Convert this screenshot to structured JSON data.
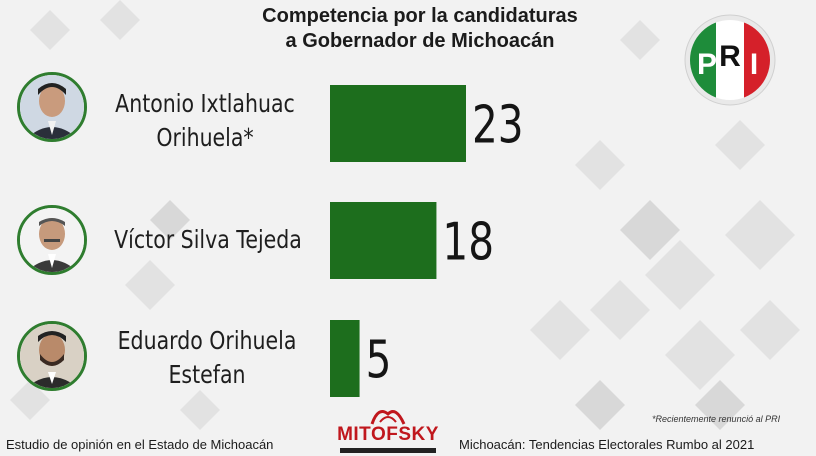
{
  "title_line1": "Competencia por la candidaturas",
  "title_line2": "a Gobernador de Michoacán",
  "party_logo": {
    "icon": "pri-logo",
    "letters": "PRI",
    "colors": [
      "#1e8c3a",
      "#ffffff",
      "#d5202a"
    ]
  },
  "candidates": [
    {
      "line1": "Antonio Ixtlahuac",
      "line2": "Orihuela*",
      "icon": "candidate-photo"
    },
    {
      "line1": "Víctor Silva Tejeda",
      "line2": "",
      "icon": "candidate-photo"
    },
    {
      "line1": "Eduardo Orihuela",
      "line2": "Estefan",
      "icon": "candidate-photo"
    }
  ],
  "chart_data": {
    "type": "bar",
    "orientation": "horizontal",
    "categories": [
      "Antonio Ixtlahuac Orihuela*",
      "Víctor Silva Tejeda",
      "Eduardo Orihuela Estefan"
    ],
    "values": [
      23,
      18,
      5
    ],
    "data_labels": [
      "23",
      "18",
      "5"
    ],
    "bar_color": "#1d6e1d",
    "xlim": [
      0,
      23
    ],
    "grid": false,
    "legend": "none"
  },
  "note": "Recientemente renunció al PRI",
  "note_marker": "*",
  "footer_left": "Estudio de opinión en el Estado de Michoacán",
  "footer_right": "Michoacán: Tendencias Electorales Rumbo al 2021",
  "brand": {
    "name": "MITOFSKY",
    "color": "#c0171d",
    "icon": "mitofsky-logo"
  }
}
